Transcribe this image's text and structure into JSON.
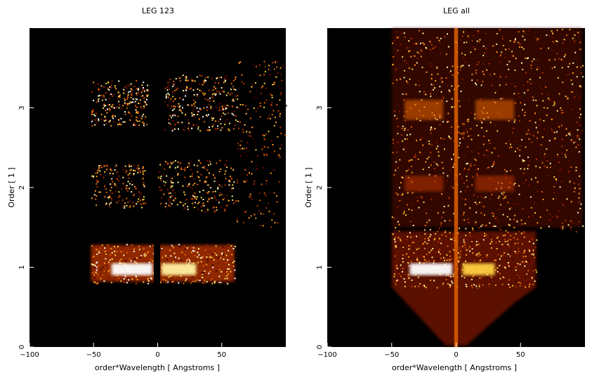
{
  "chart_data": [
    {
      "type": "heatmap",
      "title": "LEG 123",
      "xlabel": "order*Wavelength [ Angstroms ]",
      "ylabel": "Order [ 1 ]",
      "xlim": [
        -100,
        100
      ],
      "ylim": [
        0,
        4
      ],
      "xticks": [
        -100,
        -50,
        0,
        50
      ],
      "yticks": [
        0,
        1,
        2,
        3
      ],
      "colormap": "hot",
      "background": "#000000",
      "features": [
        {
          "label": "order 1",
          "order": 1,
          "x_range": [
            -42,
            60
          ],
          "gap_near": 2,
          "intensity": "saturated core -35 to -3 and 2 to 30"
        },
        {
          "label": "order 2",
          "order": 2,
          "x_range": [
            -42,
            60
          ],
          "intensity": "sparse, peaks near -20 and 15"
        },
        {
          "label": "order 3",
          "order": 3,
          "x_range": [
            -50,
            100
          ],
          "intensity": "moderate, peaks near -25 and 20 to 45"
        }
      ]
    },
    {
      "type": "heatmap",
      "title": "LEG all",
      "xlabel": "order*Wavelength [ Angstroms ]",
      "ylabel": "Order [ 1 ]",
      "xlim": [
        -100,
        100
      ],
      "ylim": [
        0,
        4
      ],
      "xticks": [
        -100,
        -50,
        0,
        50
      ],
      "yticks": [
        0,
        1,
        2,
        3
      ],
      "colormap": "hot",
      "background": "#000000",
      "features": [
        {
          "label": "order 1",
          "order": 1,
          "x_range": [
            -50,
            62
          ],
          "intensity": "saturated core -35 to -3 and 5 to 30"
        },
        {
          "label": "zeroth order streak",
          "x": 0,
          "order_range": [
            0,
            4
          ]
        },
        {
          "label": "order 2",
          "order": 2,
          "x_range": [
            -50,
            100
          ],
          "intensity": "moderate"
        },
        {
          "label": "order 3",
          "order": 3,
          "x_range": [
            -50,
            100
          ],
          "intensity": "moderate"
        }
      ]
    }
  ]
}
